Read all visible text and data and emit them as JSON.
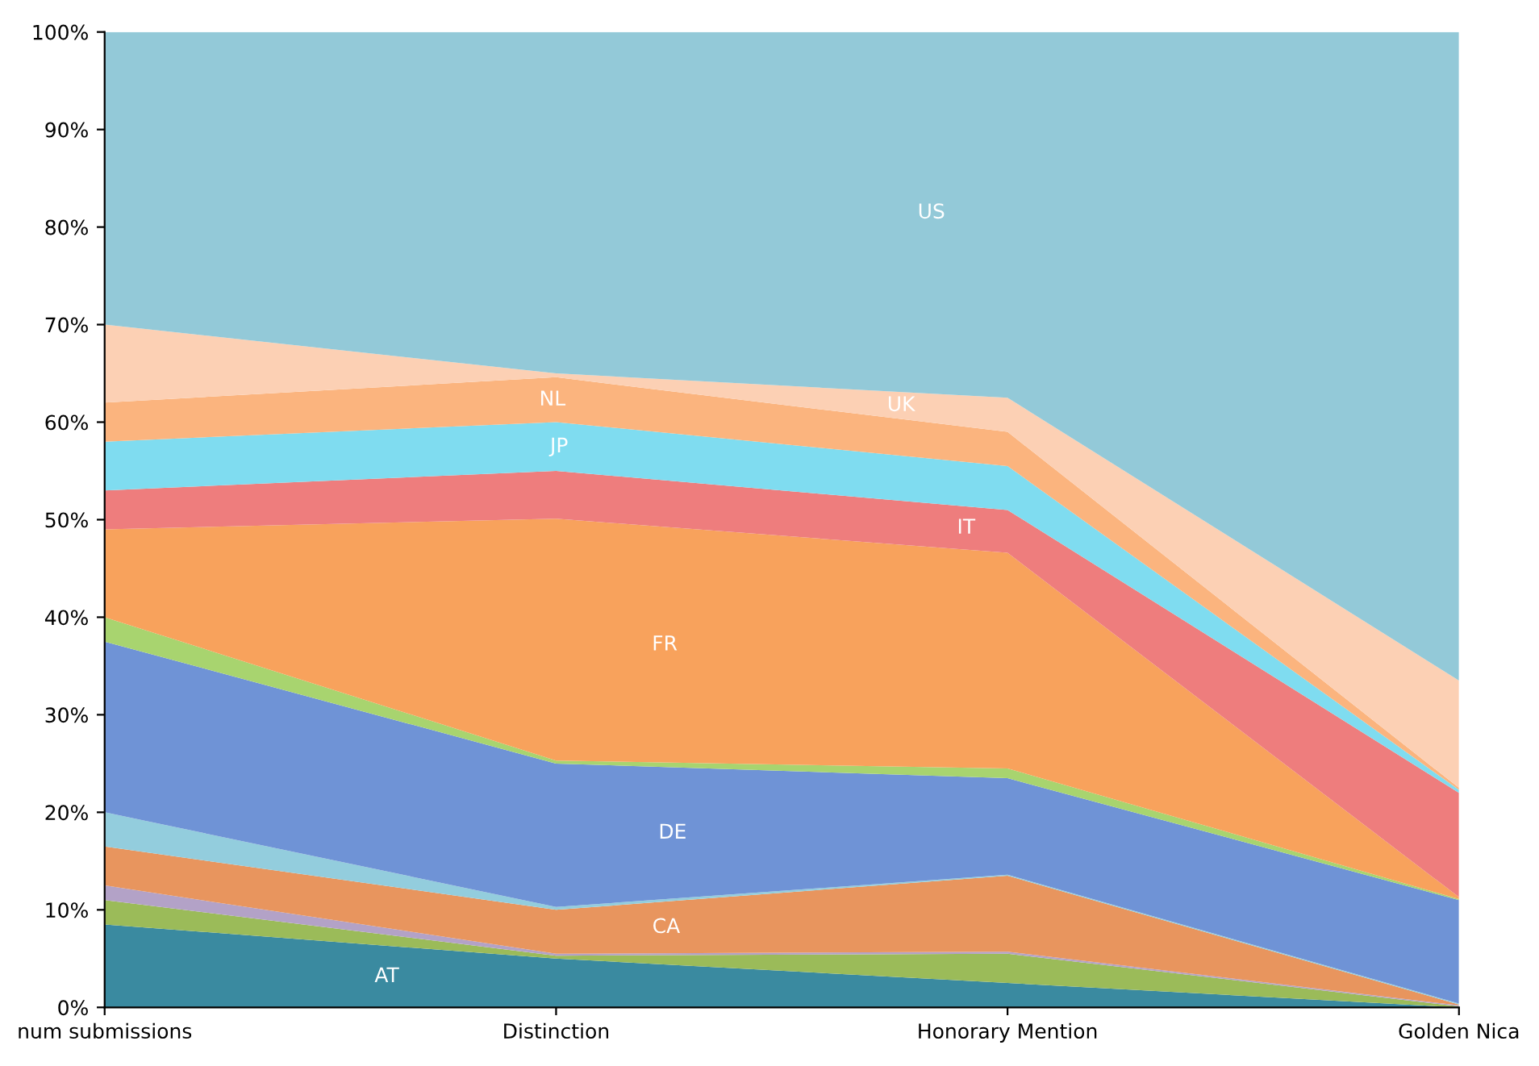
{
  "chart_data": {
    "type": "area",
    "stacked": true,
    "categories": [
      "num submissions",
      "Distinction",
      "Honorary Mention",
      "Golden Nica"
    ],
    "ylim": [
      0,
      100
    ],
    "yticks": [
      {
        "value": 0,
        "label": "0%"
      },
      {
        "value": 10,
        "label": "10%"
      },
      {
        "value": 20,
        "label": "20%"
      },
      {
        "value": 30,
        "label": "30%"
      },
      {
        "value": 40,
        "label": "40%"
      },
      {
        "value": 50,
        "label": "50%"
      },
      {
        "value": 60,
        "label": "60%"
      },
      {
        "value": 70,
        "label": "70%"
      },
      {
        "value": 80,
        "label": "80%"
      },
      {
        "value": 90,
        "label": "90%"
      },
      {
        "value": 100,
        "label": "100%"
      }
    ],
    "grid": false,
    "legend": false,
    "series": [
      {
        "name": "AT",
        "color": "#3a8aa0",
        "values": [
          8.5,
          5,
          2.5,
          0
        ]
      },
      {
        "color": "#9bbb59",
        "values": [
          2.5,
          0.3,
          3,
          0.1
        ]
      },
      {
        "color": "#b3a2c7",
        "values": [
          1.5,
          0.2,
          0.2,
          0.1
        ]
      },
      {
        "name": "CA",
        "color": "#e8955e",
        "values": [
          4,
          4.5,
          7.8,
          0.1
        ]
      },
      {
        "color": "#93cddd",
        "values": [
          3.5,
          0.3,
          0.1,
          0.1
        ]
      },
      {
        "name": "DE",
        "color": "#6f93d6",
        "values": [
          17.5,
          14.7,
          9.9,
          10.6
        ]
      },
      {
        "color": "#a8d46f",
        "values": [
          2.5,
          0.3,
          1,
          0.1
        ]
      },
      {
        "name": "FR",
        "color": "#f8a25c",
        "values": [
          9,
          24.8,
          22.1,
          0.2
        ]
      },
      {
        "name": "IT",
        "color": "#ee7d7d",
        "values": [
          4,
          4.9,
          4.4,
          10.7
        ]
      },
      {
        "name": "JP",
        "color": "#7fdcf0",
        "values": [
          5,
          5,
          4.5,
          0.3
        ]
      },
      {
        "name": "NL",
        "color": "#fbb47e",
        "values": [
          4,
          4.6,
          3.5,
          0.2
        ]
      },
      {
        "name": "UK",
        "color": "#fcd0b4",
        "values": [
          8,
          0.4,
          3.5,
          11
        ]
      },
      {
        "name": "US",
        "color": "#93c9d8",
        "values": [
          30,
          35,
          37.5,
          66.5
        ]
      }
    ]
  }
}
